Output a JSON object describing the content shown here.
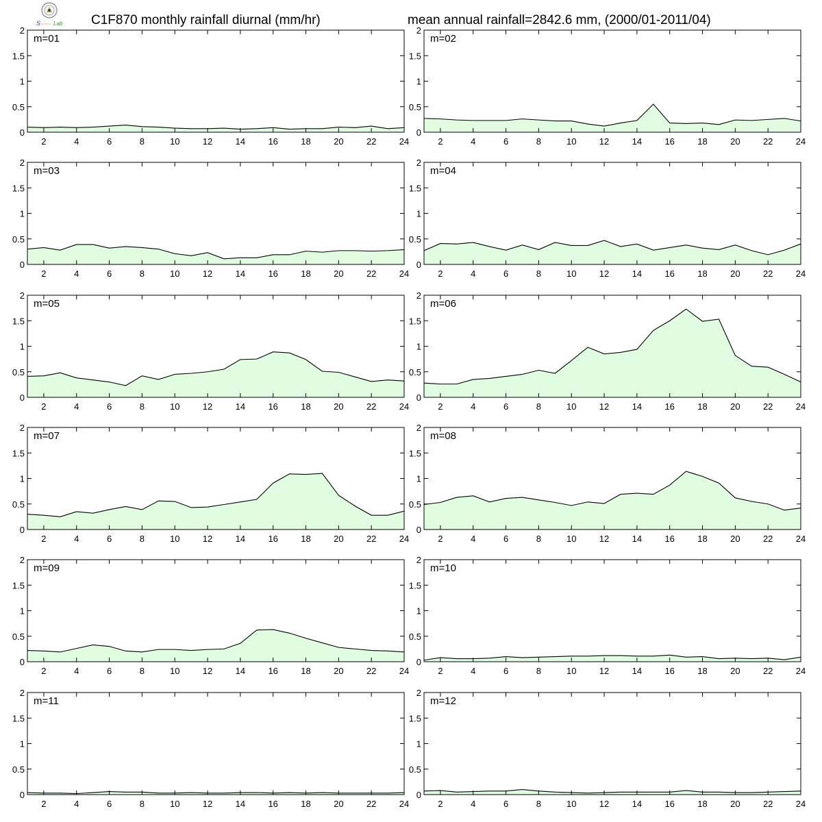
{
  "header": {
    "title_left": "C1F870 monthly rainfall diurnal (mm/hr)",
    "title_right": "mean annual rainfall=2842.6 mm, (2000/01-2011/04)"
  },
  "colors": {
    "fill": "#e1fde1",
    "line": "#000000",
    "frame": "#000000"
  },
  "chart_data": {
    "type": "area",
    "x": [
      1,
      2,
      3,
      4,
      5,
      6,
      7,
      8,
      9,
      10,
      11,
      12,
      13,
      14,
      15,
      16,
      17,
      18,
      19,
      20,
      21,
      22,
      23,
      24
    ],
    "xlim": [
      1,
      24
    ],
    "ylim": [
      0,
      2
    ],
    "x_ticks": [
      2,
      4,
      6,
      8,
      10,
      12,
      14,
      16,
      18,
      20,
      22,
      24
    ],
    "y_ticks": [
      0,
      0.5,
      1,
      1.5,
      2
    ],
    "y_tick_labels": [
      "0",
      "0.5",
      "1",
      "1.5",
      "2"
    ],
    "grid": false,
    "panels": [
      {
        "label": "m=01",
        "values": [
          0.1,
          0.09,
          0.1,
          0.09,
          0.1,
          0.12,
          0.14,
          0.11,
          0.1,
          0.08,
          0.07,
          0.07,
          0.08,
          0.06,
          0.07,
          0.09,
          0.06,
          0.07,
          0.07,
          0.1,
          0.09,
          0.12,
          0.07,
          0.09
        ]
      },
      {
        "label": "m=02",
        "values": [
          0.27,
          0.26,
          0.24,
          0.23,
          0.23,
          0.23,
          0.26,
          0.24,
          0.22,
          0.22,
          0.16,
          0.12,
          0.18,
          0.23,
          0.55,
          0.18,
          0.17,
          0.18,
          0.15,
          0.24,
          0.23,
          0.25,
          0.27,
          0.22
        ]
      },
      {
        "label": "m=03",
        "values": [
          0.3,
          0.33,
          0.28,
          0.39,
          0.39,
          0.32,
          0.35,
          0.33,
          0.3,
          0.21,
          0.17,
          0.23,
          0.11,
          0.13,
          0.13,
          0.19,
          0.19,
          0.26,
          0.24,
          0.27,
          0.27,
          0.26,
          0.27,
          0.29
        ]
      },
      {
        "label": "m=04",
        "values": [
          0.27,
          0.41,
          0.4,
          0.43,
          0.35,
          0.28,
          0.38,
          0.29,
          0.43,
          0.37,
          0.37,
          0.47,
          0.35,
          0.4,
          0.28,
          0.33,
          0.38,
          0.32,
          0.29,
          0.38,
          0.27,
          0.19,
          0.28,
          0.4
        ]
      },
      {
        "label": "m=05",
        "values": [
          0.41,
          0.42,
          0.48,
          0.38,
          0.34,
          0.3,
          0.23,
          0.42,
          0.35,
          0.45,
          0.47,
          0.5,
          0.55,
          0.74,
          0.75,
          0.89,
          0.87,
          0.74,
          0.51,
          0.49,
          0.4,
          0.31,
          0.34,
          0.32
        ]
      },
      {
        "label": "m=06",
        "values": [
          0.28,
          0.26,
          0.26,
          0.35,
          0.37,
          0.41,
          0.45,
          0.53,
          0.47,
          0.72,
          0.98,
          0.85,
          0.88,
          0.94,
          1.31,
          1.5,
          1.73,
          1.49,
          1.53,
          0.82,
          0.61,
          0.59,
          0.45,
          0.3
        ]
      },
      {
        "label": "m=07",
        "values": [
          0.3,
          0.28,
          0.25,
          0.35,
          0.32,
          0.39,
          0.45,
          0.39,
          0.56,
          0.55,
          0.43,
          0.44,
          0.49,
          0.54,
          0.59,
          0.91,
          1.09,
          1.08,
          1.1,
          0.67,
          0.46,
          0.28,
          0.28,
          0.36
        ]
      },
      {
        "label": "m=08",
        "values": [
          0.49,
          0.53,
          0.63,
          0.66,
          0.54,
          0.61,
          0.63,
          0.58,
          0.53,
          0.47,
          0.54,
          0.51,
          0.69,
          0.71,
          0.69,
          0.87,
          1.14,
          1.04,
          0.91,
          0.62,
          0.55,
          0.5,
          0.38,
          0.42
        ]
      },
      {
        "label": "m=09",
        "values": [
          0.22,
          0.21,
          0.19,
          0.26,
          0.33,
          0.3,
          0.21,
          0.19,
          0.24,
          0.24,
          0.22,
          0.24,
          0.25,
          0.36,
          0.62,
          0.63,
          0.56,
          0.46,
          0.37,
          0.28,
          0.25,
          0.22,
          0.21,
          0.19
        ]
      },
      {
        "label": "m=10",
        "values": [
          0.03,
          0.08,
          0.06,
          0.06,
          0.07,
          0.1,
          0.08,
          0.09,
          0.1,
          0.11,
          0.11,
          0.12,
          0.12,
          0.11,
          0.11,
          0.13,
          0.09,
          0.1,
          0.06,
          0.07,
          0.06,
          0.07,
          0.04,
          0.09
        ]
      },
      {
        "label": "m=11",
        "values": [
          0.04,
          0.03,
          0.03,
          0.02,
          0.04,
          0.06,
          0.05,
          0.05,
          0.03,
          0.03,
          0.04,
          0.03,
          0.03,
          0.04,
          0.04,
          0.03,
          0.04,
          0.03,
          0.04,
          0.03,
          0.03,
          0.03,
          0.03,
          0.04
        ]
      },
      {
        "label": "m=12",
        "values": [
          0.07,
          0.08,
          0.05,
          0.06,
          0.07,
          0.07,
          0.1,
          0.07,
          0.05,
          0.04,
          0.03,
          0.04,
          0.05,
          0.05,
          0.05,
          0.05,
          0.08,
          0.05,
          0.05,
          0.04,
          0.04,
          0.05,
          0.06,
          0.07
        ]
      }
    ]
  }
}
